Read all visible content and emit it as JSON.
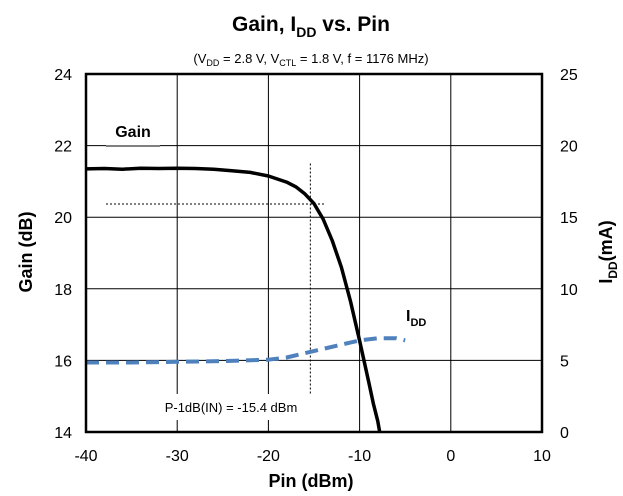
{
  "chart_data": {
    "type": "line",
    "title": {
      "main": "Gain, I",
      "sub": "DD",
      "tail": " vs. Pin"
    },
    "subtitle": {
      "parts": [
        "(V",
        "DD",
        " = 2.8 V, V",
        "CTL",
        " = 1.8 V, f = 1176 MHz)"
      ]
    },
    "xlabel": "Pin (dBm)",
    "ylabel_left": "Gain (dB)",
    "ylabel_right": {
      "main": "I",
      "sub": "DD",
      "tail": "(mA)"
    },
    "xlim": [
      -40,
      10
    ],
    "ylim_left": [
      14,
      24
    ],
    "ylim_right": [
      0,
      25
    ],
    "x_ticks": [
      "-40",
      "-30",
      "-20",
      "-10",
      "0",
      "10"
    ],
    "y_left_ticks": [
      "14",
      "16",
      "18",
      "20",
      "22",
      "24"
    ],
    "y_right_ticks": [
      "0",
      "5",
      "10",
      "15",
      "20",
      "25"
    ],
    "grid": true,
    "series": [
      {
        "name": "Gain",
        "axis": "left",
        "color": "#000000",
        "style": "solid",
        "x": [
          -40,
          -38,
          -36,
          -34,
          -32,
          -30,
          -28,
          -26,
          -24,
          -22,
          -20,
          -18,
          -17,
          -16,
          -15,
          -14,
          -13,
          -12,
          -11,
          -10,
          -9,
          -8.5,
          -8,
          -7.8
        ],
        "y": [
          21.35,
          21.36,
          21.34,
          21.37,
          21.36,
          21.37,
          21.36,
          21.34,
          21.3,
          21.25,
          21.15,
          20.98,
          20.85,
          20.65,
          20.38,
          19.95,
          19.35,
          18.6,
          17.65,
          16.55,
          15.4,
          14.8,
          14.3,
          14.0
        ]
      },
      {
        "name": "IDD",
        "axis": "right",
        "color": "#4f81bd",
        "style": "dashed",
        "x": [
          -40,
          -35,
          -30,
          -25,
          -20,
          -18,
          -16,
          -14,
          -12,
          -10,
          -8,
          -6,
          -5
        ],
        "y": [
          4.85,
          4.85,
          4.9,
          4.95,
          5.05,
          5.2,
          5.5,
          5.8,
          6.1,
          6.4,
          6.55,
          6.55,
          6.4
        ]
      }
    ],
    "series_labels": {
      "gain": "Gain",
      "idd": {
        "main": "I",
        "sub": "DD"
      }
    },
    "annotation": {
      "text": "P-1dB(IN) = -15.4 dBm",
      "marker_x": -15.4,
      "marker_y": 20.37
    }
  }
}
